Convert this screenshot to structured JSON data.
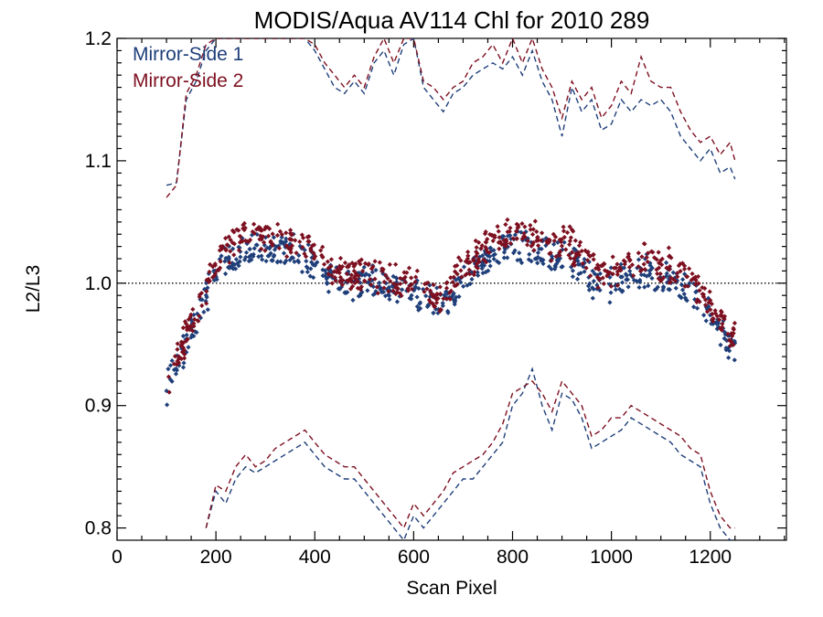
{
  "colors": {
    "side1": "#1f3f7a",
    "side2": "#7d1020",
    "axis": "#000000"
  },
  "chart_data": {
    "type": "scatter",
    "title": "MODIS/Aqua AV114 Chl for 2010 289",
    "xlabel": "Scan Pixel",
    "ylabel": "L2/L3",
    "xlim": [
      0,
      1354
    ],
    "ylim": [
      0.79,
      1.2
    ],
    "xticks": [
      0,
      200,
      400,
      600,
      800,
      1000,
      1200
    ],
    "xtick_labels": [
      "0",
      "200",
      "400",
      "600",
      "800",
      "1000",
      "1200"
    ],
    "yticks": [
      0.8,
      0.9,
      1.0,
      1.1,
      1.2
    ],
    "ytick_labels": [
      "0.8",
      "0.9",
      "1.0",
      "1.1",
      "1.2"
    ],
    "reference_line": 1.0,
    "legend_position": "top-left",
    "series": [
      {
        "name": "Mirror-Side 1",
        "color_key": "side1",
        "points_x": [
          100,
          130,
          160,
          190,
          220,
          250,
          280,
          310,
          340,
          370,
          400,
          430,
          460,
          490,
          520,
          550,
          580,
          610,
          640,
          670,
          700,
          730,
          760,
          790,
          820,
          850,
          880,
          910,
          940,
          970,
          1000,
          1030,
          1060,
          1090,
          1120,
          1150,
          1180,
          1210,
          1240,
          1250
        ],
        "points_y": [
          0.915,
          0.94,
          0.968,
          1.0,
          1.02,
          1.026,
          1.028,
          1.026,
          1.026,
          1.024,
          1.018,
          1.005,
          1.0,
          1.0,
          1.0,
          0.998,
          0.995,
          0.99,
          0.982,
          0.985,
          1.005,
          1.015,
          1.025,
          1.03,
          1.03,
          1.028,
          1.02,
          1.025,
          1.01,
          1.0,
          1.0,
          1.005,
          1.01,
          1.008,
          1.005,
          0.995,
          0.985,
          0.965,
          0.948,
          0.945
        ],
        "upper_x": [
          100,
          120,
          140,
          160,
          180,
          200,
          220,
          240,
          260,
          280,
          300,
          320,
          340,
          360,
          380,
          400,
          420,
          440,
          460,
          480,
          500,
          520,
          540,
          560,
          580,
          600,
          620,
          640,
          660,
          680,
          700,
          720,
          740,
          760,
          780,
          800,
          820,
          840,
          860,
          880,
          900,
          920,
          940,
          960,
          980,
          1000,
          1020,
          1040,
          1060,
          1080,
          1100,
          1120,
          1140,
          1160,
          1180,
          1200,
          1220,
          1240,
          1250
        ],
        "upper_y": [
          1.08,
          1.082,
          1.15,
          1.165,
          1.19,
          1.2,
          1.2,
          1.2,
          1.2,
          1.2,
          1.2,
          1.2,
          1.2,
          1.2,
          1.2,
          1.19,
          1.175,
          1.16,
          1.155,
          1.165,
          1.155,
          1.18,
          1.19,
          1.17,
          1.195,
          1.2,
          1.16,
          1.15,
          1.14,
          1.155,
          1.16,
          1.17,
          1.175,
          1.18,
          1.175,
          1.185,
          1.17,
          1.19,
          1.165,
          1.15,
          1.12,
          1.16,
          1.14,
          1.15,
          1.125,
          1.13,
          1.15,
          1.14,
          1.15,
          1.145,
          1.15,
          1.14,
          1.12,
          1.11,
          1.1,
          1.11,
          1.09,
          1.095,
          1.085
        ],
        "lower_x": [
          180,
          200,
          220,
          240,
          260,
          280,
          300,
          320,
          340,
          360,
          380,
          400,
          420,
          440,
          460,
          480,
          500,
          520,
          540,
          560,
          580,
          600,
          620,
          640,
          660,
          680,
          700,
          720,
          740,
          760,
          780,
          800,
          820,
          840,
          860,
          880,
          900,
          920,
          940,
          960,
          980,
          1000,
          1020,
          1040,
          1060,
          1080,
          1100,
          1120,
          1140,
          1160,
          1180,
          1200,
          1220,
          1240,
          1250
        ],
        "lower_y": [
          0.8,
          0.83,
          0.82,
          0.84,
          0.85,
          0.845,
          0.85,
          0.855,
          0.86,
          0.865,
          0.87,
          0.86,
          0.85,
          0.845,
          0.84,
          0.84,
          0.83,
          0.82,
          0.81,
          0.8,
          0.79,
          0.81,
          0.8,
          0.81,
          0.82,
          0.83,
          0.84,
          0.84,
          0.85,
          0.86,
          0.87,
          0.9,
          0.91,
          0.93,
          0.9,
          0.88,
          0.91,
          0.905,
          0.89,
          0.865,
          0.87,
          0.875,
          0.88,
          0.89,
          0.885,
          0.88,
          0.875,
          0.87,
          0.86,
          0.855,
          0.85,
          0.82,
          0.8,
          0.79,
          0.79
        ]
      },
      {
        "name": "Mirror-Side 2",
        "color_key": "side2",
        "points_x": [
          100,
          130,
          160,
          190,
          220,
          250,
          280,
          310,
          340,
          370,
          400,
          430,
          460,
          490,
          520,
          550,
          580,
          610,
          640,
          670,
          700,
          730,
          760,
          790,
          820,
          850,
          880,
          910,
          940,
          970,
          1000,
          1030,
          1060,
          1090,
          1120,
          1150,
          1180,
          1210,
          1240,
          1250
        ],
        "points_y": [
          0.92,
          0.946,
          0.974,
          1.008,
          1.03,
          1.036,
          1.038,
          1.036,
          1.036,
          1.034,
          1.028,
          1.012,
          1.006,
          1.006,
          1.006,
          1.004,
          1.001,
          0.996,
          0.988,
          0.991,
          1.013,
          1.025,
          1.035,
          1.04,
          1.04,
          1.036,
          1.03,
          1.036,
          1.02,
          1.01,
          1.01,
          1.015,
          1.02,
          1.018,
          1.014,
          1.004,
          0.994,
          0.974,
          0.958,
          0.955
        ],
        "upper_x": [
          100,
          120,
          140,
          160,
          180,
          200,
          220,
          240,
          260,
          280,
          300,
          320,
          340,
          360,
          380,
          400,
          420,
          440,
          460,
          480,
          500,
          520,
          540,
          560,
          580,
          600,
          620,
          640,
          660,
          680,
          700,
          720,
          740,
          760,
          780,
          800,
          820,
          840,
          860,
          880,
          900,
          920,
          940,
          960,
          980,
          1000,
          1020,
          1040,
          1060,
          1080,
          1100,
          1120,
          1140,
          1160,
          1180,
          1200,
          1220,
          1240,
          1250
        ],
        "upper_y": [
          1.07,
          1.08,
          1.155,
          1.17,
          1.195,
          1.2,
          1.2,
          1.2,
          1.2,
          1.2,
          1.2,
          1.2,
          1.2,
          1.2,
          1.2,
          1.195,
          1.18,
          1.17,
          1.16,
          1.17,
          1.16,
          1.185,
          1.2,
          1.18,
          1.2,
          1.2,
          1.165,
          1.16,
          1.15,
          1.16,
          1.165,
          1.18,
          1.185,
          1.195,
          1.18,
          1.2,
          1.18,
          1.2,
          1.175,
          1.16,
          1.135,
          1.165,
          1.15,
          1.16,
          1.135,
          1.145,
          1.165,
          1.155,
          1.185,
          1.165,
          1.16,
          1.16,
          1.14,
          1.125,
          1.115,
          1.12,
          1.105,
          1.115,
          1.1
        ],
        "lower_x": [
          180,
          200,
          220,
          240,
          260,
          280,
          300,
          320,
          340,
          360,
          380,
          400,
          420,
          440,
          460,
          480,
          500,
          520,
          540,
          560,
          580,
          600,
          620,
          640,
          660,
          680,
          700,
          720,
          740,
          760,
          780,
          800,
          820,
          840,
          860,
          880,
          900,
          920,
          940,
          960,
          980,
          1000,
          1020,
          1040,
          1060,
          1080,
          1100,
          1120,
          1140,
          1160,
          1180,
          1200,
          1220,
          1240,
          1250
        ],
        "lower_y": [
          0.8,
          0.835,
          0.83,
          0.85,
          0.86,
          0.85,
          0.855,
          0.865,
          0.87,
          0.875,
          0.88,
          0.87,
          0.86,
          0.855,
          0.85,
          0.85,
          0.84,
          0.83,
          0.82,
          0.81,
          0.8,
          0.82,
          0.81,
          0.82,
          0.83,
          0.845,
          0.85,
          0.855,
          0.86,
          0.87,
          0.885,
          0.91,
          0.915,
          0.92,
          0.91,
          0.895,
          0.92,
          0.91,
          0.9,
          0.875,
          0.88,
          0.89,
          0.89,
          0.9,
          0.895,
          0.89,
          0.885,
          0.88,
          0.875,
          0.865,
          0.86,
          0.83,
          0.81,
          0.8,
          0.8
        ]
      }
    ]
  }
}
